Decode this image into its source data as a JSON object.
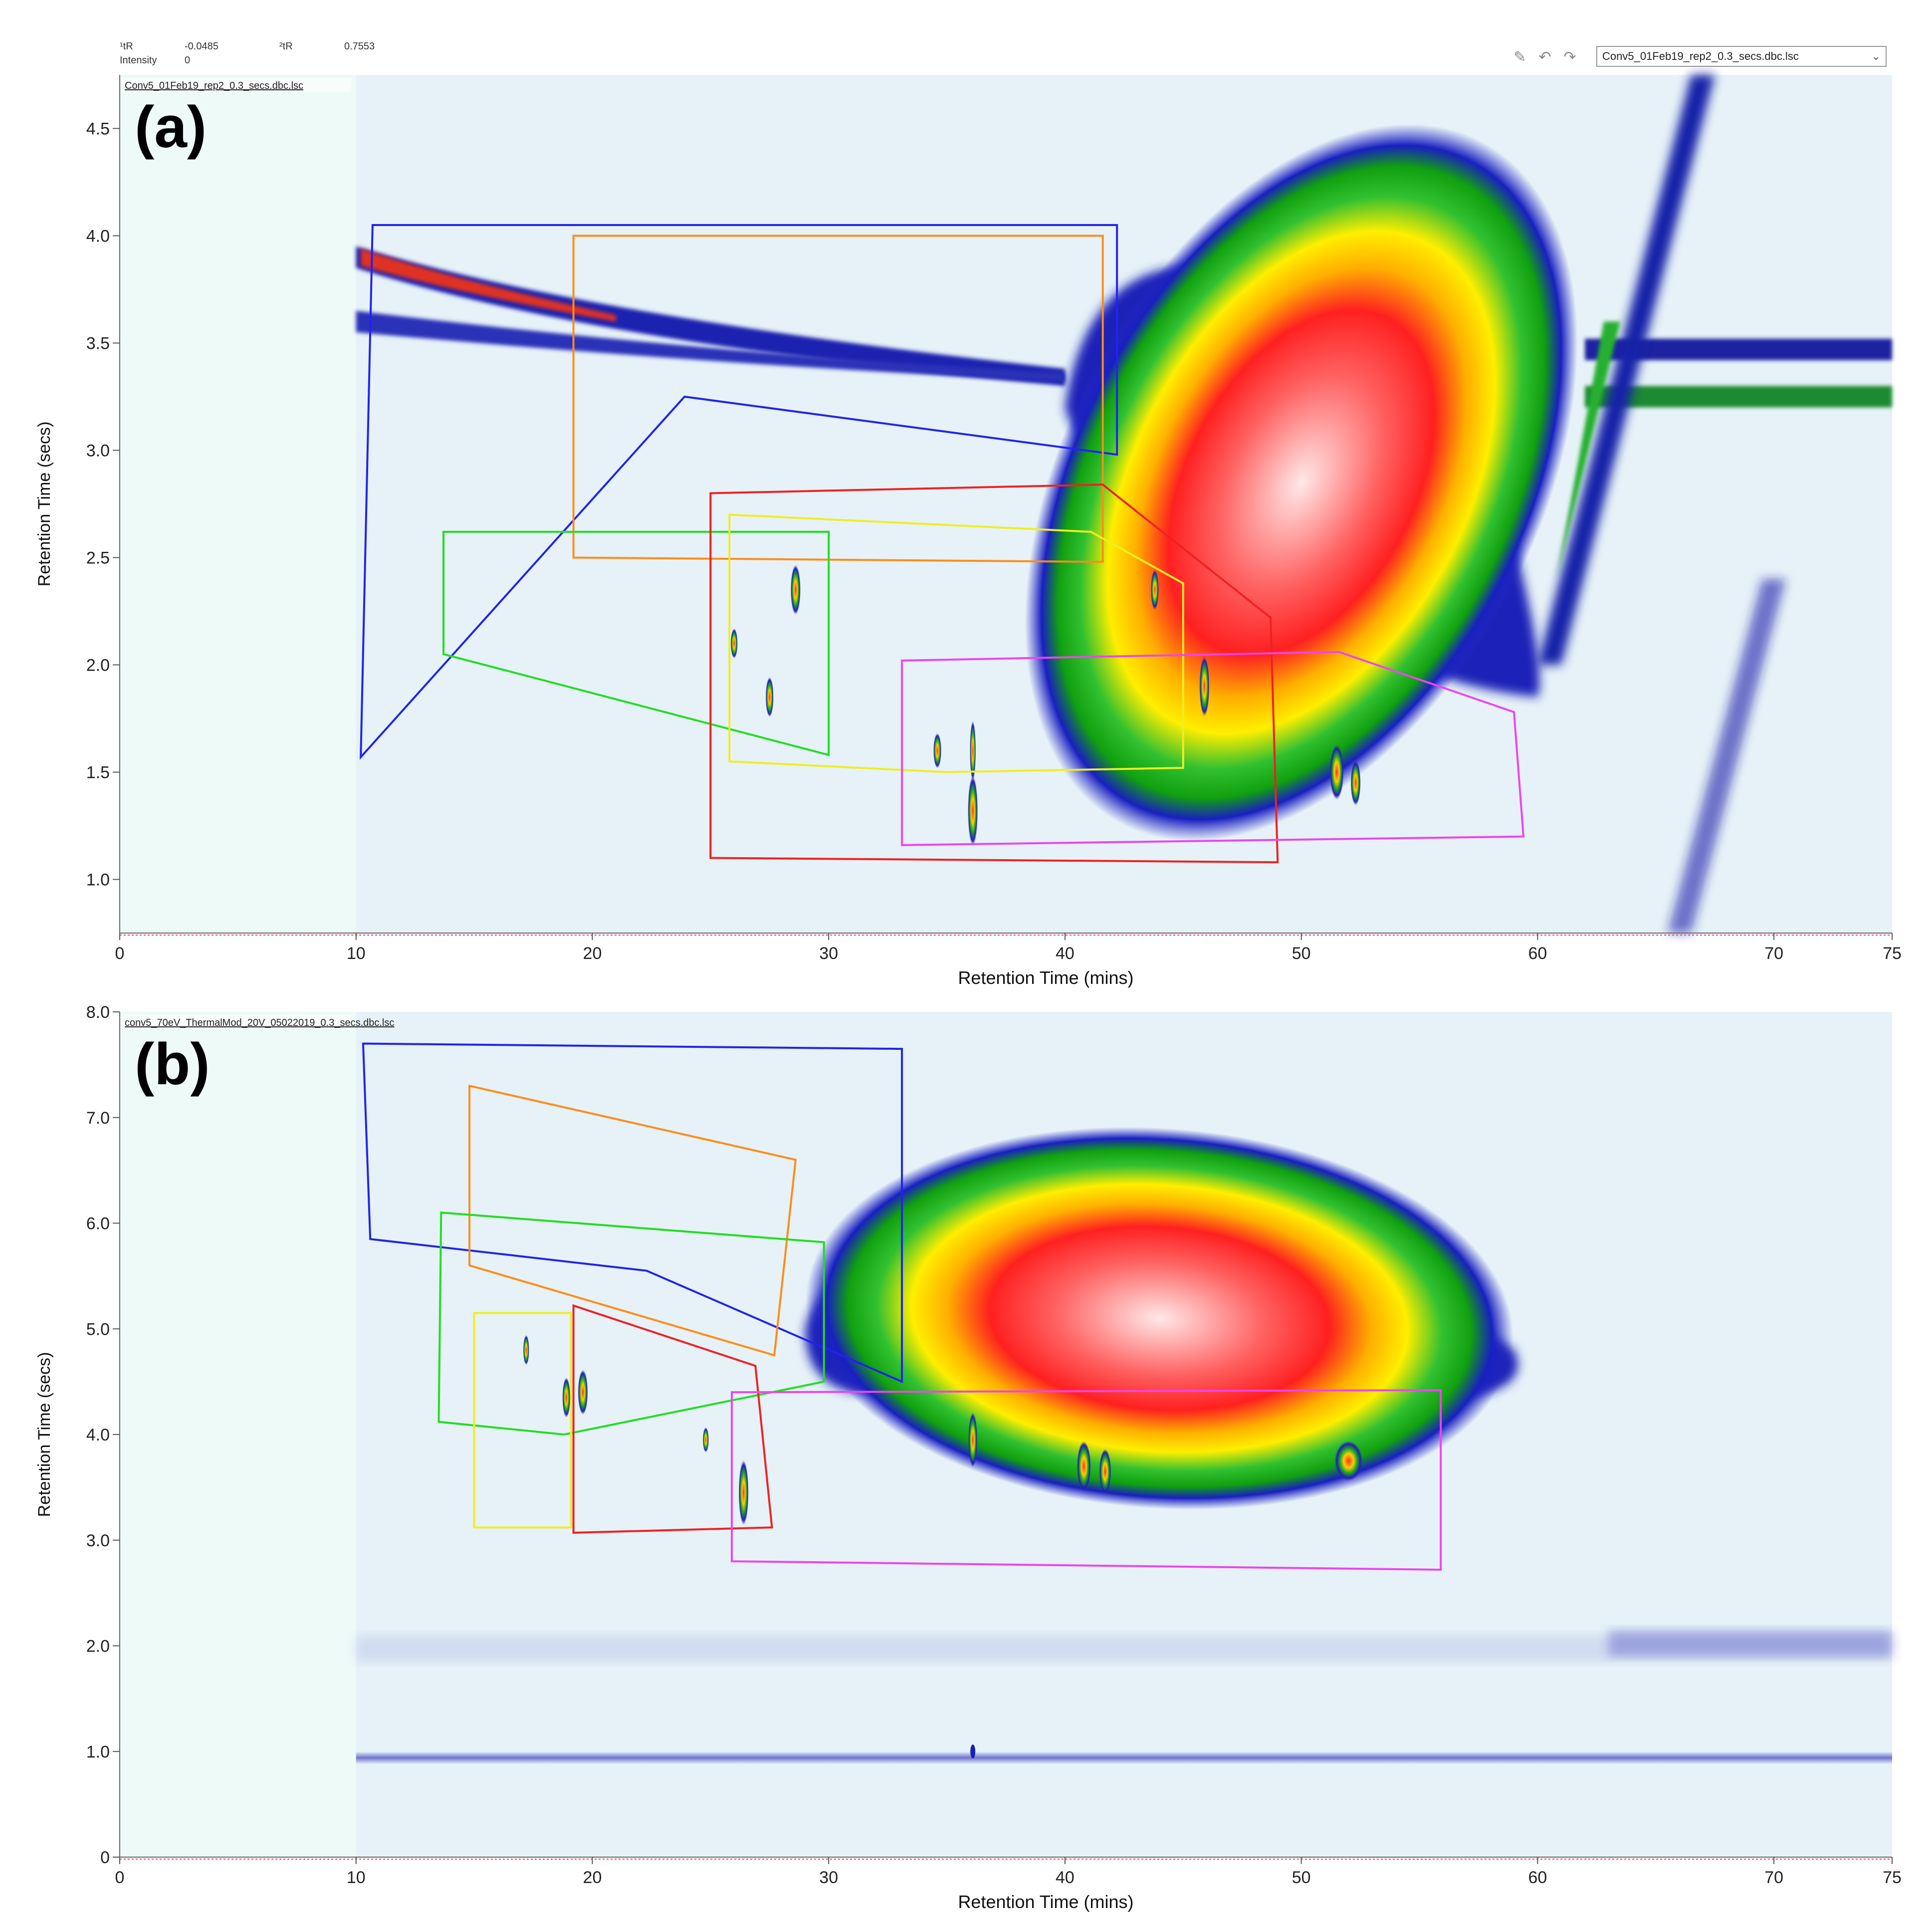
{
  "toolbar": {
    "t1_label": "¹tR",
    "t1_value": "-0.0485",
    "t2_label": "²tR",
    "t2_value": "0.7553",
    "intensity_label": "Intensity",
    "intensity_value": "0",
    "file_select_value": "Conv5_01Feb19_rep2_0.3_secs.dbc.lsc",
    "icons": [
      "edit-icon",
      "undo-icon",
      "redo-icon"
    ]
  },
  "chart_data": [
    {
      "type": "heatmap",
      "panel_label": "(a)",
      "file_label": "Conv5_01Feb19_rep2_0.3_secs.dbc.lsc",
      "xlabel": "Retention Time (mins)",
      "ylabel": "Retention Time (secs)",
      "xlim": [
        0,
        75
      ],
      "ylim": [
        0.75,
        4.75
      ],
      "xticks": [
        0,
        10,
        20,
        30,
        40,
        50,
        60,
        70,
        75
      ],
      "yticks": [
        1.0,
        1.5,
        2.0,
        2.5,
        3.0,
        3.5,
        4.0,
        4.5
      ],
      "ytick_labels": [
        "1.0",
        "1.5",
        "2.0",
        "2.5",
        "3.0",
        "3.5",
        "4.0",
        "4.5"
      ],
      "regions": [
        {
          "color": "#2222ee",
          "points": [
            [
              10.7,
              4.05
            ],
            [
              42.2,
              4.05
            ],
            [
              42.2,
              2.98
            ],
            [
              23.9,
              3.25
            ],
            [
              10.2,
              1.57
            ]
          ]
        },
        {
          "color": "#ff8c1a",
          "points": [
            [
              19.2,
              4.0
            ],
            [
              41.6,
              4.0
            ],
            [
              41.6,
              2.48
            ],
            [
              19.2,
              2.5
            ]
          ]
        },
        {
          "color": "#22dd22",
          "points": [
            [
              13.7,
              2.62
            ],
            [
              30.0,
              2.62
            ],
            [
              30.0,
              1.58
            ],
            [
              13.7,
              2.05
            ]
          ]
        },
        {
          "color": "#eeee22",
          "points": [
            [
              25.8,
              2.7
            ],
            [
              41.1,
              2.62
            ],
            [
              45.0,
              2.38
            ],
            [
              45.0,
              1.52
            ],
            [
              35.0,
              1.5
            ],
            [
              25.8,
              1.55
            ]
          ]
        },
        {
          "color": "#ee2222",
          "points": [
            [
              25.0,
              2.8
            ],
            [
              41.6,
              2.84
            ],
            [
              48.7,
              2.22
            ],
            [
              49.0,
              1.08
            ],
            [
              25.0,
              1.1
            ]
          ]
        },
        {
          "color": "#ee44ee",
          "points": [
            [
              33.1,
              2.02
            ],
            [
              51.6,
              2.06
            ],
            [
              59.0,
              1.78
            ],
            [
              59.4,
              1.2
            ],
            [
              33.1,
              1.16
            ]
          ]
        }
      ]
    },
    {
      "type": "heatmap",
      "panel_label": "(b)",
      "file_label": "conv5_70eV_ThermalMod_20V_05022019_0.3_secs.dbc.lsc",
      "xlabel": "Retention Time (mins)",
      "ylabel": "Retention Time (secs)",
      "xlim": [
        0,
        75
      ],
      "ylim": [
        0,
        8.0
      ],
      "xticks": [
        0,
        10,
        20,
        30,
        40,
        50,
        60,
        70,
        75
      ],
      "yticks": [
        0,
        1.0,
        2.0,
        3.0,
        4.0,
        5.0,
        6.0,
        7.0,
        8.0
      ],
      "ytick_labels": [
        "0",
        "1.0",
        "2.0",
        "3.0",
        "4.0",
        "5.0",
        "6.0",
        "7.0",
        "8.0"
      ],
      "regions": [
        {
          "color": "#2222ee",
          "points": [
            [
              10.3,
              7.7
            ],
            [
              33.1,
              7.65
            ],
            [
              33.1,
              4.5
            ],
            [
              22.3,
              5.55
            ],
            [
              10.6,
              5.85
            ]
          ]
        },
        {
          "color": "#ff8c1a",
          "points": [
            [
              14.8,
              7.3
            ],
            [
              28.6,
              6.6
            ],
            [
              27.7,
              4.75
            ],
            [
              14.8,
              5.6
            ]
          ]
        },
        {
          "color": "#22dd22",
          "points": [
            [
              13.6,
              6.1
            ],
            [
              29.8,
              5.82
            ],
            [
              29.8,
              4.5
            ],
            [
              18.8,
              4.0
            ],
            [
              13.5,
              4.12
            ]
          ]
        },
        {
          "color": "#eeee22",
          "points": [
            [
              15.0,
              5.15
            ],
            [
              19.1,
              5.15
            ],
            [
              19.1,
              3.12
            ],
            [
              15.0,
              3.12
            ]
          ]
        },
        {
          "color": "#ee2222",
          "points": [
            [
              19.2,
              5.22
            ],
            [
              26.9,
              4.65
            ],
            [
              27.6,
              3.12
            ],
            [
              19.2,
              3.07
            ]
          ]
        },
        {
          "color": "#ee44ee",
          "points": [
            [
              25.9,
              4.4
            ],
            [
              55.9,
              4.42
            ],
            [
              55.9,
              2.72
            ],
            [
              25.9,
              2.8
            ]
          ]
        }
      ]
    }
  ]
}
